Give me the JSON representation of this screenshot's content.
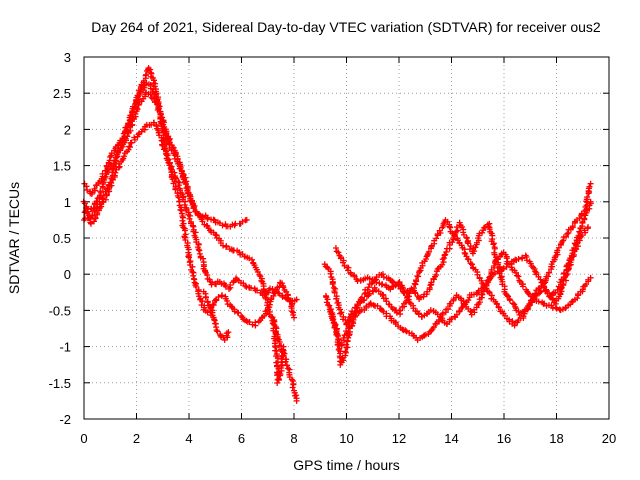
{
  "chart_data": {
    "type": "scatter",
    "title": "Day 264 of 2021, Sidereal Day-to-day VTEC variation (SDTVAR) for receiver ous2",
    "xlabel": "GPS time / hours",
    "ylabel": "SDTVAR / TECUs",
    "xlim": [
      0,
      20
    ],
    "ylim": [
      -2,
      3
    ],
    "x_ticks": [
      "0",
      "2",
      "4",
      "6",
      "8",
      "10",
      "12",
      "14",
      "16",
      "18",
      "20"
    ],
    "y_ticks": [
      "3",
      "2.5",
      "2",
      "1.5",
      "1",
      "0.5",
      "0",
      "-0.5",
      "-1",
      "-1.5",
      "-2"
    ],
    "grid": true,
    "marker": "+",
    "color": "#ff0000",
    "series": [
      {
        "name": "track-1",
        "points": [
          [
            0,
            0.75
          ],
          [
            0.3,
            0.8
          ],
          [
            0.7,
            1.05
          ],
          [
            1.0,
            1.25
          ],
          [
            1.3,
            1.7
          ],
          [
            1.6,
            1.95
          ],
          [
            1.9,
            2.3
          ],
          [
            2.2,
            2.6
          ],
          [
            2.5,
            2.85
          ],
          [
            2.7,
            2.6
          ],
          [
            3.0,
            2.05
          ],
          [
            3.3,
            1.75
          ],
          [
            3.5,
            1.6
          ],
          [
            3.8,
            1.35
          ],
          [
            4.0,
            1.1
          ],
          [
            4.2,
            0.9
          ],
          [
            4.5,
            0.75
          ],
          [
            4.8,
            0.6
          ],
          [
            5.0,
            0.55
          ],
          [
            5.3,
            0.4
          ],
          [
            5.6,
            0.35
          ],
          [
            5.9,
            0.3
          ],
          [
            6.1,
            0.25
          ],
          [
            6.4,
            0.2
          ],
          [
            6.7,
            0.0
          ],
          [
            6.9,
            -0.25
          ],
          [
            7.1,
            -0.55
          ],
          [
            7.3,
            -0.75
          ],
          [
            7.5,
            -1.0
          ],
          [
            7.8,
            -1.3
          ],
          [
            8.0,
            -1.6
          ],
          [
            8.1,
            -1.75
          ]
        ]
      },
      {
        "name": "track-2",
        "points": [
          [
            0,
            0.85
          ],
          [
            0.3,
            0.9
          ],
          [
            0.6,
            1.1
          ],
          [
            0.9,
            1.4
          ],
          [
            1.2,
            1.6
          ],
          [
            1.5,
            1.8
          ],
          [
            1.8,
            2.05
          ],
          [
            2.1,
            2.35
          ],
          [
            2.4,
            2.5
          ],
          [
            2.6,
            2.45
          ],
          [
            2.9,
            2.25
          ],
          [
            3.2,
            1.9
          ],
          [
            3.5,
            1.65
          ],
          [
            3.8,
            1.35
          ],
          [
            4.0,
            1.1
          ],
          [
            4.3,
            0.85
          ],
          [
            4.6,
            0.8
          ],
          [
            4.9,
            0.75
          ],
          [
            5.2,
            0.7
          ],
          [
            5.5,
            0.65
          ],
          [
            5.8,
            0.7
          ],
          [
            6.0,
            0.7
          ],
          [
            6.2,
            0.75
          ]
        ]
      },
      {
        "name": "track-3",
        "points": [
          [
            0,
            1.25
          ],
          [
            0.3,
            1.1
          ],
          [
            0.6,
            1.3
          ],
          [
            0.9,
            1.5
          ],
          [
            1.2,
            1.75
          ],
          [
            1.5,
            1.9
          ],
          [
            1.8,
            2.2
          ],
          [
            2.1,
            2.45
          ],
          [
            2.4,
            2.65
          ],
          [
            2.7,
            2.5
          ],
          [
            3.0,
            2.0
          ],
          [
            3.2,
            1.55
          ],
          [
            3.4,
            1.3
          ],
          [
            3.6,
            1.05
          ],
          [
            3.8,
            0.65
          ],
          [
            4.0,
            0.25
          ],
          [
            4.2,
            -0.05
          ],
          [
            4.4,
            -0.3
          ],
          [
            4.6,
            -0.5
          ],
          [
            4.8,
            -0.55
          ],
          [
            5.0,
            -0.35
          ],
          [
            5.3,
            -0.3
          ],
          [
            5.6,
            -0.45
          ],
          [
            5.9,
            -0.55
          ],
          [
            6.2,
            -0.65
          ],
          [
            6.5,
            -0.7
          ],
          [
            6.8,
            -0.6
          ],
          [
            7.0,
            -0.5
          ],
          [
            7.2,
            -0.3
          ],
          [
            7.5,
            -0.1
          ],
          [
            7.8,
            -0.3
          ],
          [
            8.0,
            -0.6
          ]
        ]
      },
      {
        "name": "track-4",
        "points": [
          [
            0,
            1.0
          ],
          [
            0.3,
            0.7
          ],
          [
            0.6,
            0.9
          ],
          [
            0.9,
            1.1
          ],
          [
            1.2,
            1.4
          ],
          [
            1.5,
            1.6
          ],
          [
            1.8,
            1.8
          ],
          [
            2.1,
            1.95
          ],
          [
            2.4,
            2.05
          ],
          [
            2.7,
            2.1
          ],
          [
            3.0,
            1.8
          ],
          [
            3.3,
            1.5
          ],
          [
            3.6,
            1.25
          ],
          [
            3.9,
            0.9
          ],
          [
            4.2,
            0.6
          ],
          [
            4.5,
            0.2
          ],
          [
            4.7,
            -0.05
          ],
          [
            4.9,
            -0.15
          ],
          [
            5.2,
            -0.1
          ],
          [
            5.5,
            -0.2
          ],
          [
            5.8,
            -0.05
          ],
          [
            6.1,
            -0.15
          ],
          [
            6.4,
            -0.2
          ],
          [
            6.7,
            -0.25
          ],
          [
            6.9,
            -0.3
          ],
          [
            7.1,
            -0.2
          ],
          [
            7.3,
            -0.25
          ],
          [
            7.6,
            -0.3
          ],
          [
            7.9,
            -0.4
          ],
          [
            8.1,
            -0.35
          ]
        ]
      },
      {
        "name": "track-5",
        "points": [
          [
            4.6,
            -0.25
          ],
          [
            4.8,
            -0.45
          ],
          [
            5.0,
            -0.7
          ],
          [
            5.2,
            -0.85
          ],
          [
            5.4,
            -0.9
          ],
          [
            5.5,
            -0.8
          ]
        ]
      },
      {
        "name": "track-6",
        "points": [
          [
            7.2,
            -0.6
          ],
          [
            7.3,
            -0.95
          ],
          [
            7.35,
            -1.2
          ],
          [
            7.4,
            -1.5
          ],
          [
            7.5,
            -1.3
          ],
          [
            7.6,
            -1.0
          ]
        ]
      },
      {
        "name": "track-7",
        "points": [
          [
            9.2,
            -0.3
          ],
          [
            9.4,
            -0.5
          ],
          [
            9.6,
            -0.8
          ],
          [
            9.8,
            -1.0
          ],
          [
            10.0,
            -0.8
          ],
          [
            10.2,
            -0.55
          ],
          [
            10.5,
            -0.4
          ],
          [
            10.8,
            -0.3
          ],
          [
            11.1,
            -0.2
          ],
          [
            11.4,
            -0.3
          ],
          [
            11.7,
            -0.45
          ],
          [
            12.0,
            -0.55
          ],
          [
            12.3,
            -0.35
          ],
          [
            12.6,
            -0.15
          ],
          [
            12.9,
            0.15
          ],
          [
            13.2,
            0.35
          ],
          [
            13.5,
            0.55
          ],
          [
            13.8,
            0.75
          ],
          [
            14.0,
            0.6
          ],
          [
            14.3,
            0.45
          ],
          [
            14.6,
            0.25
          ],
          [
            14.9,
            0.05
          ],
          [
            15.2,
            -0.15
          ],
          [
            15.5,
            -0.3
          ],
          [
            15.8,
            -0.45
          ],
          [
            16.1,
            -0.6
          ],
          [
            16.4,
            -0.7
          ],
          [
            16.7,
            -0.6
          ],
          [
            17.0,
            -0.4
          ],
          [
            17.3,
            -0.2
          ],
          [
            17.6,
            -0.1
          ],
          [
            17.9,
            0.2
          ],
          [
            18.2,
            0.45
          ],
          [
            18.5,
            0.6
          ],
          [
            18.8,
            0.75
          ],
          [
            19.1,
            0.9
          ],
          [
            19.3,
            1.25
          ]
        ]
      },
      {
        "name": "track-8",
        "points": [
          [
            9.2,
            0.15
          ],
          [
            9.4,
            0.0
          ],
          [
            9.6,
            -0.3
          ],
          [
            9.8,
            -0.55
          ],
          [
            10.0,
            -0.7
          ],
          [
            10.3,
            -0.55
          ],
          [
            10.6,
            -0.5
          ],
          [
            10.9,
            -0.4
          ],
          [
            11.2,
            -0.45
          ],
          [
            11.5,
            -0.55
          ],
          [
            11.8,
            -0.65
          ],
          [
            12.1,
            -0.75
          ],
          [
            12.4,
            -0.8
          ],
          [
            12.7,
            -0.9
          ],
          [
            13.0,
            -0.85
          ],
          [
            13.3,
            -0.75
          ],
          [
            13.6,
            -0.6
          ],
          [
            13.9,
            -0.45
          ],
          [
            14.2,
            -0.3
          ],
          [
            14.5,
            -0.4
          ],
          [
            14.8,
            -0.55
          ],
          [
            15.1,
            -0.35
          ],
          [
            15.4,
            -0.1
          ],
          [
            15.7,
            0.2
          ],
          [
            16.0,
            0.3
          ],
          [
            16.3,
            0.1
          ],
          [
            16.6,
            -0.1
          ],
          [
            16.9,
            -0.25
          ],
          [
            17.2,
            -0.35
          ],
          [
            17.5,
            -0.4
          ],
          [
            17.8,
            -0.45
          ],
          [
            18.1,
            -0.5
          ],
          [
            18.4,
            -0.45
          ],
          [
            18.7,
            -0.35
          ],
          [
            19.0,
            -0.2
          ],
          [
            19.3,
            -0.05
          ]
        ]
      },
      {
        "name": "track-9",
        "points": [
          [
            9.6,
            0.35
          ],
          [
            9.9,
            0.15
          ],
          [
            10.2,
            0.0
          ],
          [
            10.5,
            -0.1
          ],
          [
            10.8,
            -0.05
          ],
          [
            11.1,
            -0.1
          ],
          [
            11.4,
            -0.15
          ],
          [
            11.7,
            -0.2
          ],
          [
            12.0,
            -0.1
          ],
          [
            12.3,
            -0.3
          ],
          [
            12.6,
            -0.5
          ],
          [
            12.9,
            -0.6
          ],
          [
            13.2,
            -0.5
          ],
          [
            13.5,
            -0.55
          ],
          [
            13.8,
            -0.7
          ],
          [
            14.1,
            -0.6
          ],
          [
            14.4,
            -0.45
          ],
          [
            14.7,
            -0.3
          ],
          [
            15.0,
            -0.25
          ],
          [
            15.3,
            -0.15
          ],
          [
            15.6,
            0.0
          ],
          [
            15.9,
            0.05
          ],
          [
            16.2,
            0.15
          ],
          [
            16.5,
            0.2
          ],
          [
            16.8,
            0.25
          ],
          [
            17.1,
            0.1
          ],
          [
            17.4,
            -0.1
          ],
          [
            17.7,
            -0.3
          ],
          [
            18.0,
            -0.4
          ],
          [
            18.3,
            -0.1
          ],
          [
            18.6,
            0.2
          ],
          [
            18.9,
            0.5
          ],
          [
            19.2,
            0.65
          ]
        ]
      },
      {
        "name": "track-10",
        "points": [
          [
            9.4,
            -0.5
          ],
          [
            9.6,
            -0.75
          ],
          [
            9.8,
            -1.25
          ],
          [
            10.0,
            -1.0
          ],
          [
            10.2,
            -0.7
          ],
          [
            10.4,
            -0.45
          ],
          [
            10.7,
            -0.25
          ],
          [
            11.0,
            -0.1
          ],
          [
            11.3,
            0.0
          ],
          [
            11.6,
            -0.05
          ],
          [
            11.9,
            -0.15
          ],
          [
            12.2,
            -0.25
          ],
          [
            12.5,
            -0.2
          ],
          [
            12.8,
            -0.35
          ],
          [
            13.1,
            -0.25
          ],
          [
            13.4,
            0.0
          ],
          [
            13.7,
            0.2
          ],
          [
            14.0,
            0.45
          ],
          [
            14.3,
            0.7
          ],
          [
            14.5,
            0.55
          ],
          [
            14.8,
            0.3
          ],
          [
            15.1,
            0.55
          ],
          [
            15.4,
            0.7
          ],
          [
            15.6,
            0.4
          ],
          [
            15.8,
            0.1
          ],
          [
            16.0,
            -0.2
          ],
          [
            16.3,
            -0.4
          ],
          [
            16.6,
            -0.55
          ],
          [
            16.9,
            -0.45
          ],
          [
            17.2,
            -0.3
          ],
          [
            17.5,
            -0.2
          ],
          [
            17.8,
            -0.3
          ],
          [
            18.1,
            -0.2
          ],
          [
            18.4,
            0.1
          ],
          [
            18.7,
            0.4
          ],
          [
            19.0,
            0.7
          ],
          [
            19.3,
            1.0
          ]
        ]
      }
    ]
  }
}
